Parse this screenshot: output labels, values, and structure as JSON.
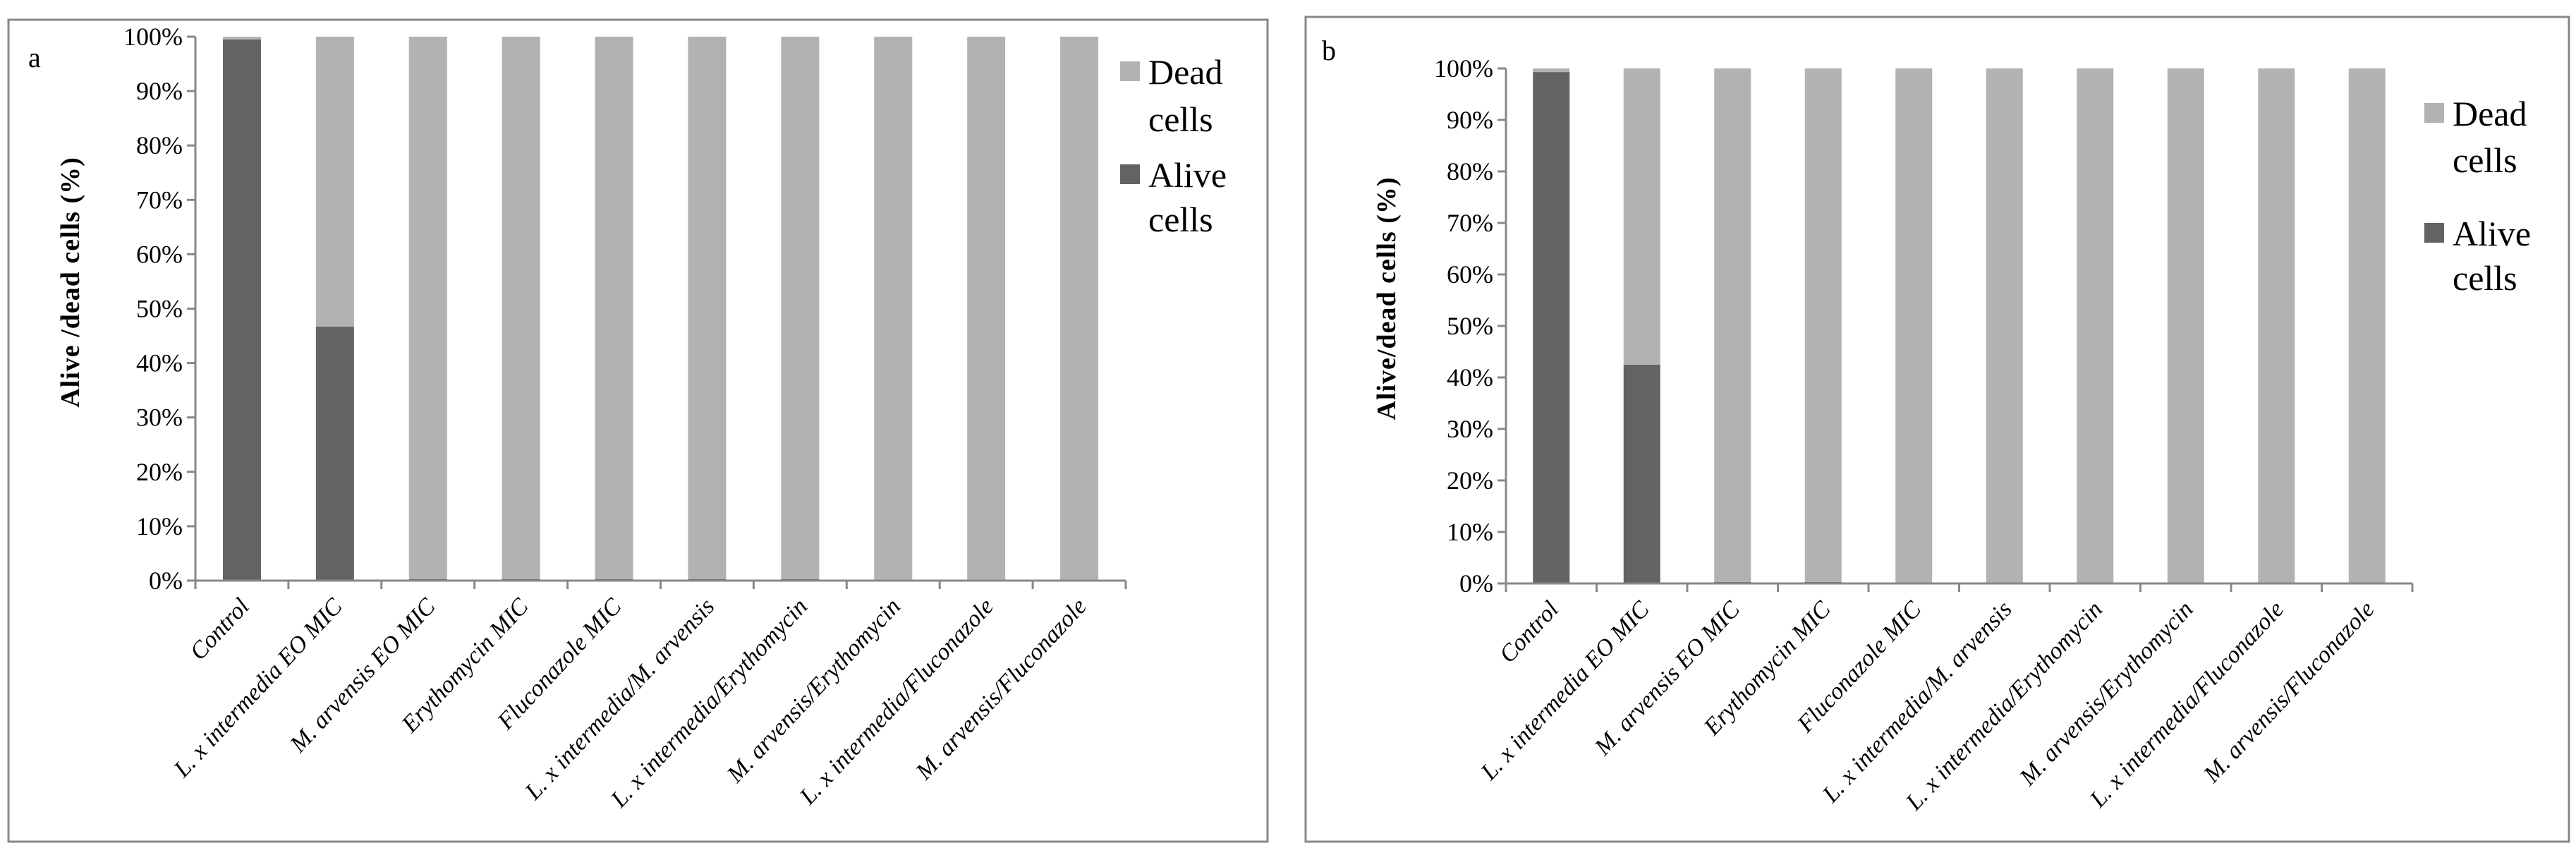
{
  "chart_data": [
    {
      "type": "bar",
      "stacked": true,
      "panel_label": "a",
      "ylabel": "Alive /dead cells (%)",
      "ylim": [
        0,
        100
      ],
      "yticks": [
        "0%",
        "10%",
        "20%",
        "30%",
        "40%",
        "50%",
        "60%",
        "70%",
        "80%",
        "90%",
        "100%"
      ],
      "categories": [
        "Control",
        "L. x intermedia EO MIC",
        "M. arvensis EO MIC",
        "Erythomycin MIC",
        "Fluconazole MIC",
        "L. x intermedia/M. arvensis",
        "L. x intermedia/Erythomycin",
        "M. arvensis/Erythomycin",
        "L. x intermedia/Fluconazole",
        "M. arvensis/Fluconazole"
      ],
      "series": [
        {
          "name": "Alive cells",
          "color": "#636363",
          "values": [
            99.5,
            46.7,
            0.3,
            0.3,
            0.3,
            0.3,
            0.3,
            0,
            0,
            0
          ]
        },
        {
          "name": "Dead cells",
          "color": "#b2b2b2",
          "values": [
            0.5,
            53.3,
            99.7,
            99.7,
            99.7,
            99.7,
            99.7,
            100,
            100,
            100
          ]
        }
      ],
      "legend": {
        "placement": "right",
        "items": [
          [
            "Dead",
            "cells"
          ],
          [
            "Alive",
            "cells"
          ]
        ]
      },
      "grid": false
    },
    {
      "type": "bar",
      "stacked": true,
      "panel_label": "b",
      "ylabel": "Alive/dead cells (%)",
      "ylim": [
        0,
        100
      ],
      "yticks": [
        "0%",
        "10%",
        "20%",
        "30%",
        "40%",
        "50%",
        "60%",
        "70%",
        "80%",
        "90%",
        "100%"
      ],
      "categories": [
        "Control",
        "L. x intermedia EO MIC",
        "M. arvensis EO MIC",
        "Erythomycin MIC",
        "Fluconazole MIC",
        "L. x intermedia/M. arvensis",
        "L. x intermedia/Erythomycin",
        "M. arvensis/Erythomycin",
        "L. x intermedia/Fluconazole",
        "M. arvensis/Fluconazole"
      ],
      "series": [
        {
          "name": "Alive cells",
          "color": "#636363",
          "values": [
            99.3,
            42.5,
            0.3,
            0.3,
            0,
            0,
            0,
            0,
            0,
            0
          ]
        },
        {
          "name": "Dead cells",
          "color": "#b2b2b2",
          "values": [
            0.7,
            57.5,
            99.7,
            99.7,
            100,
            100,
            100,
            100,
            100,
            100
          ]
        }
      ],
      "legend": {
        "placement": "right",
        "items": [
          [
            "Dead",
            "cells"
          ],
          [
            "Alive",
            "cells"
          ]
        ]
      },
      "grid": false
    }
  ]
}
